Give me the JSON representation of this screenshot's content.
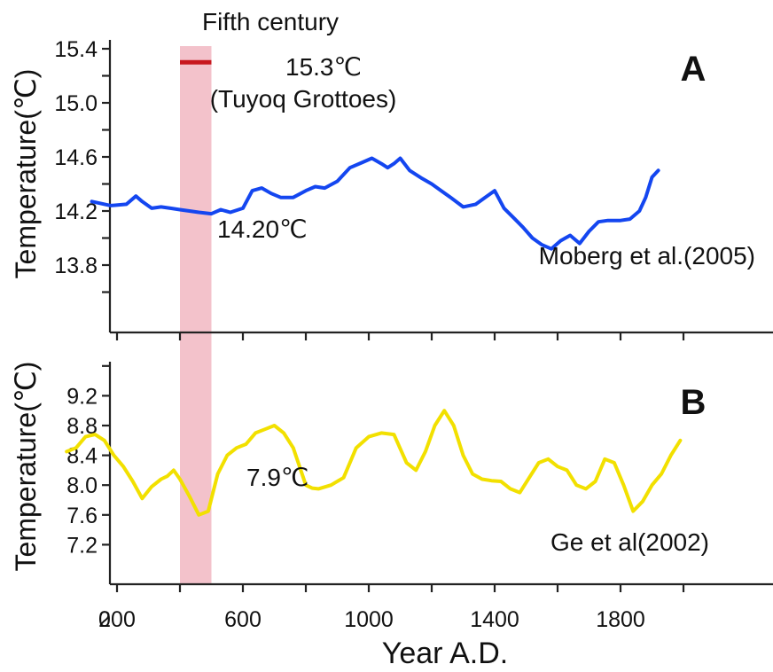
{
  "chart_data": [
    {
      "panel_label": "A",
      "type": "line",
      "ylabel": "Temperature(℃)",
      "ylim": [
        13.4,
        15.4
      ],
      "y_ticks": [
        13.8,
        14.2,
        14.6,
        15.0,
        15.4
      ],
      "series": [
        {
          "name": "Moberg et al.(2005)",
          "color": "#1446f0",
          "x": [
            120,
            180,
            230,
            260,
            280,
            310,
            340,
            370,
            400,
            430,
            460,
            500,
            530,
            560,
            600,
            630,
            660,
            690,
            720,
            760,
            800,
            830,
            860,
            900,
            940,
            980,
            1010,
            1040,
            1060,
            1080,
            1100,
            1130,
            1170,
            1200,
            1230,
            1260,
            1300,
            1340,
            1370,
            1400,
            1430,
            1460,
            1490,
            1520,
            1550,
            1580,
            1610,
            1640,
            1670,
            1700,
            1730,
            1760,
            1800,
            1830,
            1860,
            1880,
            1900,
            1920
          ],
          "y": [
            14.27,
            14.24,
            14.25,
            14.31,
            14.27,
            14.22,
            14.23,
            14.22,
            14.21,
            14.2,
            14.19,
            14.18,
            14.21,
            14.19,
            14.22,
            14.35,
            14.37,
            14.33,
            14.3,
            14.3,
            14.35,
            14.38,
            14.37,
            14.42,
            14.52,
            14.56,
            14.59,
            14.55,
            14.52,
            14.55,
            14.59,
            14.5,
            14.44,
            14.4,
            14.35,
            14.3,
            14.23,
            14.25,
            14.3,
            14.35,
            14.22,
            14.15,
            14.08,
            14.0,
            13.95,
            13.92,
            13.98,
            14.02,
            13.96,
            14.05,
            14.12,
            14.13,
            14.13,
            14.14,
            14.2,
            14.3,
            14.45,
            14.5
          ]
        }
      ],
      "annotations": {
        "band_label": "Fifth century",
        "marker_value": "15.3℃",
        "marker_site": "(Tuyoq Grottoes)",
        "mean_label": "14.20℃"
      },
      "grid": false,
      "legend": "none"
    },
    {
      "panel_label": "B",
      "type": "line",
      "ylabel": "Temperature(℃)",
      "xlabel": "Year A.D.",
      "ylim": [
        6.8,
        10.0
      ],
      "y_ticks": [
        7.2,
        7.6,
        8.0,
        8.4,
        8.8,
        9.2
      ],
      "x_ticks": [
        0,
        200,
        600,
        1000,
        1400,
        1800
      ],
      "xlim": [
        0,
        2000
      ],
      "series": [
        {
          "name": "Ge et al(2002)",
          "color": "#f2e000",
          "x": [
            40,
            70,
            100,
            130,
            160,
            190,
            220,
            250,
            280,
            310,
            340,
            360,
            380,
            400,
            430,
            460,
            490,
            520,
            550,
            580,
            610,
            640,
            670,
            700,
            730,
            760,
            780,
            800,
            820,
            840,
            880,
            920,
            960,
            1000,
            1040,
            1080,
            1120,
            1150,
            1180,
            1210,
            1240,
            1270,
            1300,
            1330,
            1360,
            1390,
            1420,
            1450,
            1480,
            1510,
            1540,
            1570,
            1600,
            1630,
            1660,
            1690,
            1720,
            1750,
            1780,
            1810,
            1840,
            1870,
            1900,
            1930,
            1960,
            1990
          ],
          "y": [
            8.45,
            8.5,
            8.65,
            8.68,
            8.6,
            8.4,
            8.25,
            8.05,
            7.82,
            7.98,
            8.08,
            8.12,
            8.2,
            8.08,
            7.85,
            7.6,
            7.65,
            8.15,
            8.4,
            8.5,
            8.55,
            8.7,
            8.75,
            8.8,
            8.7,
            8.5,
            8.25,
            8.0,
            7.96,
            7.95,
            8.0,
            8.1,
            8.5,
            8.65,
            8.7,
            8.68,
            8.3,
            8.2,
            8.45,
            8.8,
            9.0,
            8.8,
            8.4,
            8.15,
            8.08,
            8.06,
            8.05,
            7.95,
            7.9,
            8.1,
            8.3,
            8.35,
            8.25,
            8.2,
            8.0,
            7.95,
            8.05,
            8.35,
            8.3,
            8.0,
            7.65,
            7.78,
            8.0,
            8.15,
            8.4,
            8.6
          ]
        }
      ],
      "annotations": {
        "mean_label": "7.9℃"
      },
      "grid": false,
      "legend": "none"
    }
  ],
  "band": {
    "x_start": 400,
    "x_end": 500,
    "color": "#f3c2cb"
  },
  "marker": {
    "x_start": 400,
    "x_end": 500,
    "y": 15.3,
    "color": "#c8171e"
  }
}
